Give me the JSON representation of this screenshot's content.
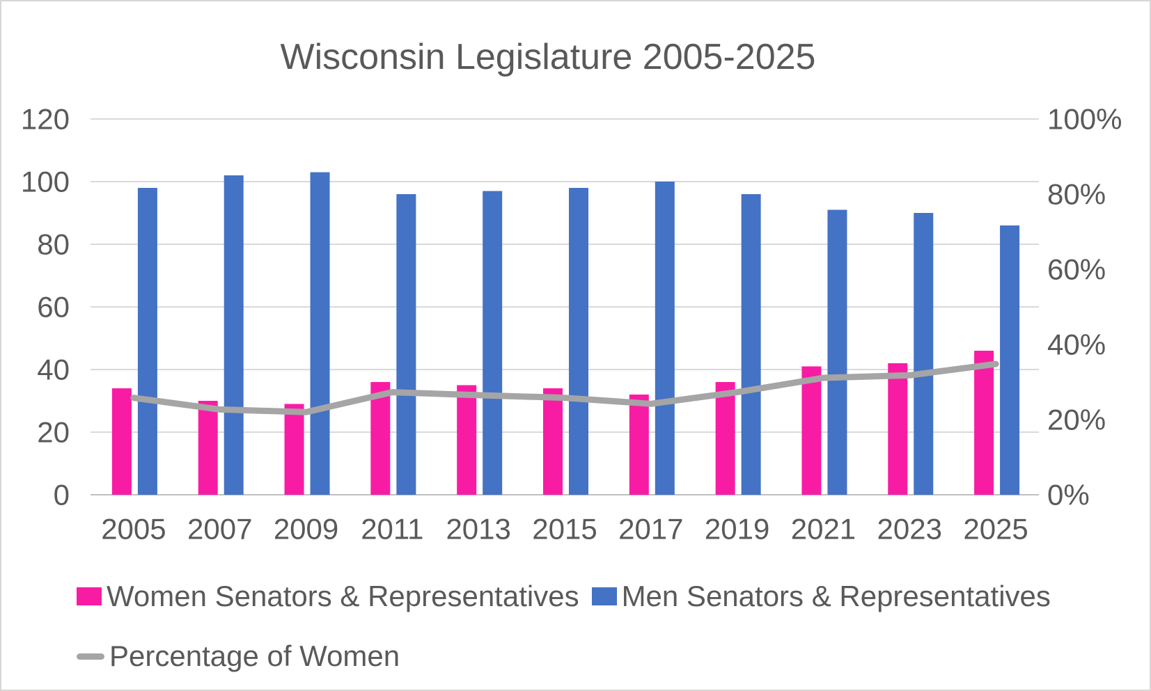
{
  "chart_data": {
    "type": "combo-bar-line",
    "title": "Wisconsin Legislature 2005-2025",
    "categories": [
      "2005",
      "2007",
      "2009",
      "2011",
      "2013",
      "2015",
      "2017",
      "2019",
      "2021",
      "2023",
      "2025"
    ],
    "series": [
      {
        "name": "Women Senators & Representatives",
        "type": "bar",
        "axis": "left",
        "color": "#F81CA4",
        "values": [
          34,
          30,
          29,
          36,
          35,
          34,
          32,
          36,
          41,
          42,
          46
        ]
      },
      {
        "name": "Men Senators & Representatives",
        "type": "bar",
        "axis": "left",
        "color": "#4472C4",
        "values": [
          98,
          102,
          103,
          96,
          97,
          98,
          100,
          96,
          91,
          90,
          86
        ]
      },
      {
        "name": "Percentage of Women",
        "type": "line",
        "axis": "right",
        "color": "#A5A5A5",
        "values": [
          25.8,
          22.7,
          22.0,
          27.3,
          26.5,
          25.8,
          24.2,
          27.3,
          31.1,
          31.8,
          34.8
        ]
      }
    ],
    "left_axis": {
      "min": 0,
      "max": 120,
      "step": 20,
      "tick_labels": [
        "0",
        "20",
        "40",
        "60",
        "80",
        "100",
        "120"
      ]
    },
    "right_axis": {
      "min": 0,
      "max": 100,
      "step": 20,
      "tick_labels": [
        "0%",
        "20%",
        "40%",
        "60%",
        "80%",
        "100%"
      ]
    },
    "grid": true,
    "legend_position": "bottom-left",
    "style": {
      "text_color": "#595959",
      "gridline_color": "#D9D9D9",
      "axis_line_color": "#BFBFBF",
      "background": "#FFFFFF"
    }
  }
}
